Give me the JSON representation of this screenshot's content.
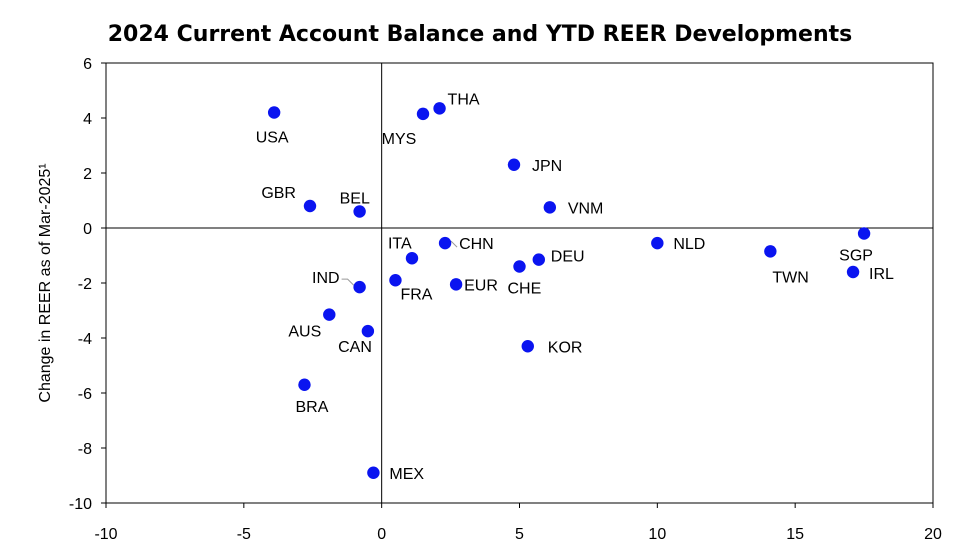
{
  "chart_data": {
    "type": "scatter",
    "title": "2024 Current Account Balance and YTD REER Developments",
    "ylabel": "Change in REER as of Mar-2025¹",
    "xlabel": "",
    "xlim": [
      -10,
      20
    ],
    "ylim": [
      -10,
      6
    ],
    "xticks": [
      -10,
      -5,
      0,
      5,
      10,
      15,
      20
    ],
    "yticks": [
      -10,
      -8,
      -6,
      -4,
      -2,
      0,
      2,
      4,
      6
    ],
    "grid": false,
    "marker_color": "#0a14f0",
    "points": [
      {
        "label": "USA",
        "x": -3.9,
        "y": 4.2
      },
      {
        "label": "MYS",
        "x": 1.5,
        "y": 4.15
      },
      {
        "label": "THA",
        "x": 2.1,
        "y": 4.35
      },
      {
        "label": "JPN",
        "x": 4.8,
        "y": 2.3
      },
      {
        "label": "GBR",
        "x": -2.6,
        "y": 0.8
      },
      {
        "label": "BEL",
        "x": -0.8,
        "y": 0.6
      },
      {
        "label": "VNM",
        "x": 6.1,
        "y": 0.75
      },
      {
        "label": "SGP",
        "x": 17.5,
        "y": -0.2
      },
      {
        "label": "ITA",
        "x": 1.1,
        "y": -1.1
      },
      {
        "label": "CHN",
        "x": 2.3,
        "y": -0.55
      },
      {
        "label": "NLD",
        "x": 10.0,
        "y": -0.55
      },
      {
        "label": "TWN",
        "x": 14.1,
        "y": -0.85
      },
      {
        "label": "DEU",
        "x": 5.7,
        "y": -1.15
      },
      {
        "label": "CHE",
        "x": 5.0,
        "y": -1.4
      },
      {
        "label": "IRL",
        "x": 17.1,
        "y": -1.6
      },
      {
        "label": "IND",
        "x": -0.8,
        "y": -2.15
      },
      {
        "label": "FRA",
        "x": 0.5,
        "y": -1.9
      },
      {
        "label": "EUR",
        "x": 2.7,
        "y": -2.05
      },
      {
        "label": "AUS",
        "x": -1.9,
        "y": -3.15
      },
      {
        "label": "CAN",
        "x": -0.5,
        "y": -3.75
      },
      {
        "label": "KOR",
        "x": 5.3,
        "y": -4.3
      },
      {
        "label": "BRA",
        "x": -2.8,
        "y": -5.7
      },
      {
        "label": "MEX",
        "x": -0.3,
        "y": -8.9
      }
    ]
  }
}
